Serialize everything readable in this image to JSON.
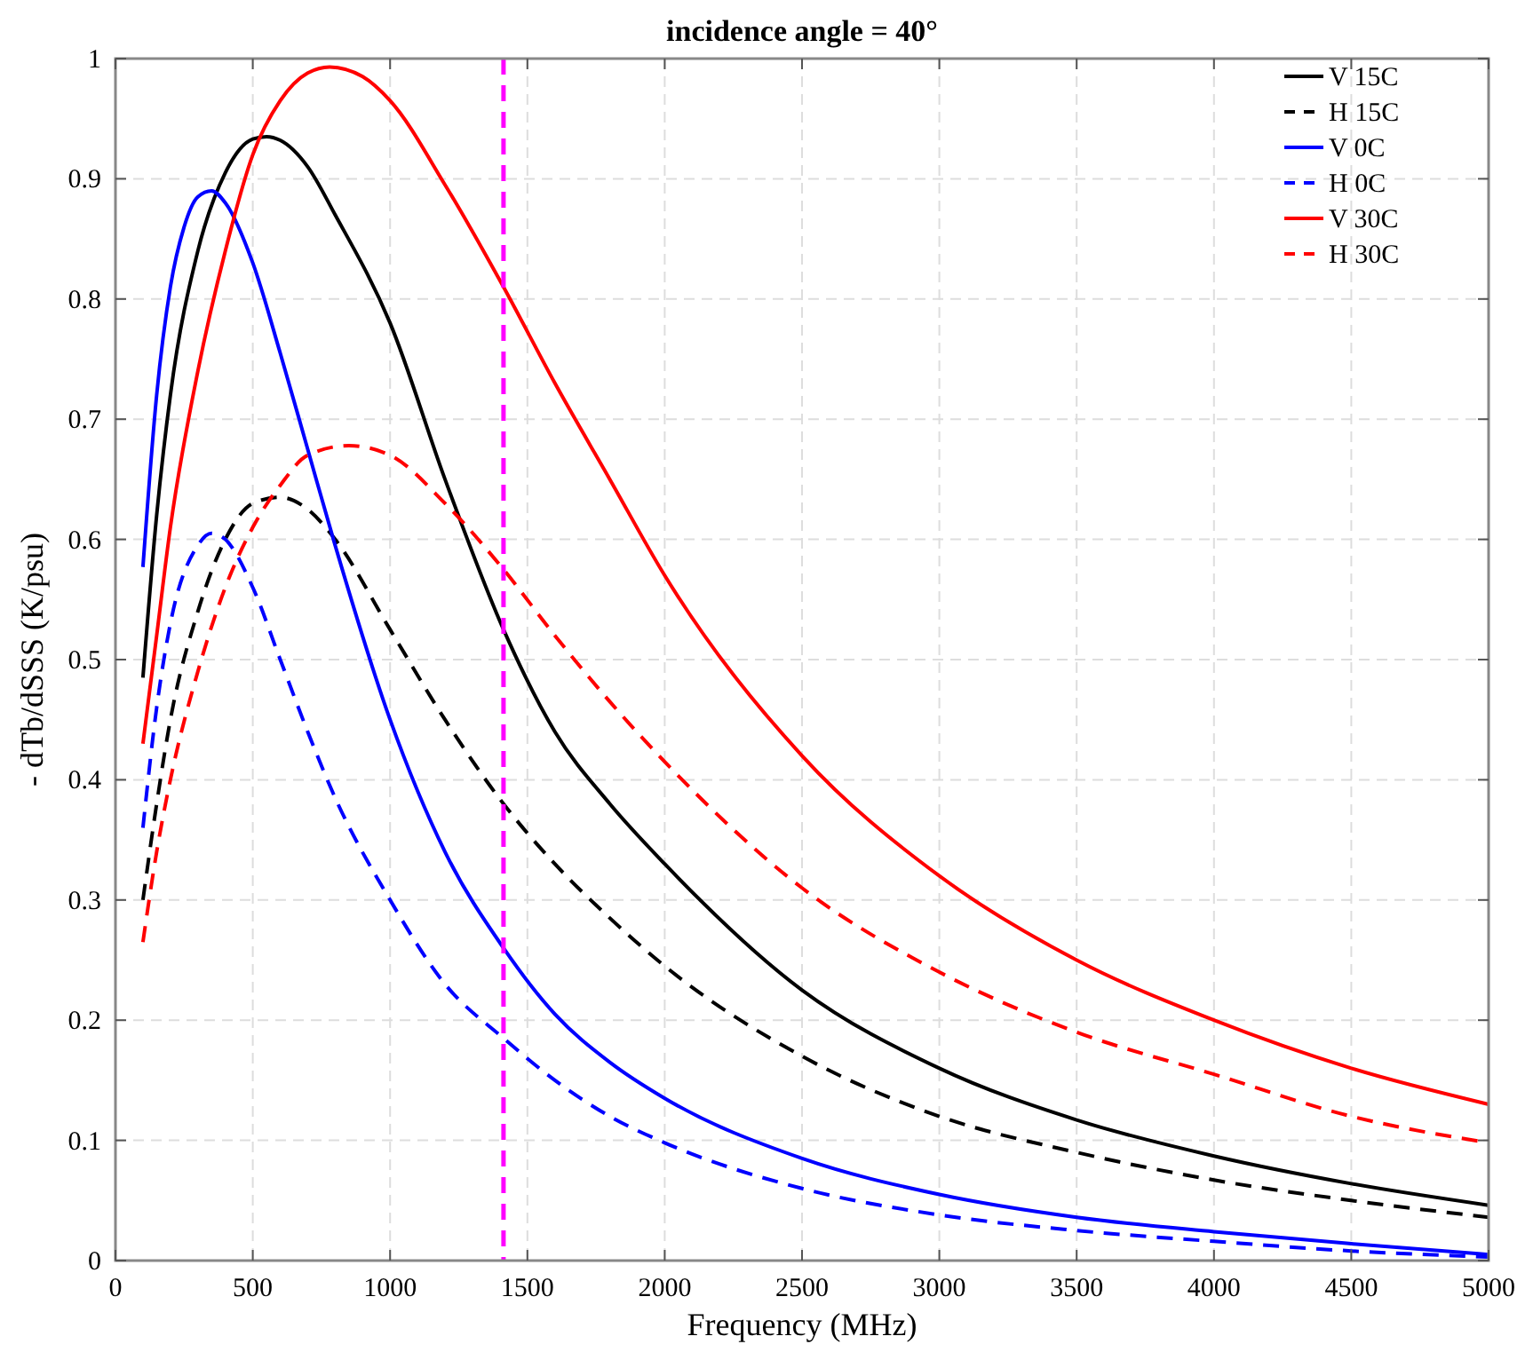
{
  "chart_data": {
    "type": "line",
    "title": "incidence angle = 40°",
    "xlabel": "Frequency (MHz)",
    "ylabel": "- dTb/dSSS (K/psu)",
    "xlim": [
      0,
      5000
    ],
    "xticks": [
      0,
      500,
      1000,
      1500,
      2000,
      2500,
      3000,
      3500,
      4000,
      4500,
      5000
    ],
    "ylim": [
      0,
      1
    ],
    "yticks": [
      0,
      0.1,
      0.2,
      0.3,
      0.4,
      0.5,
      0.6,
      0.7,
      0.8,
      0.9,
      1
    ],
    "grid": true,
    "legend": "top right",
    "ref_lines": [
      {
        "axis": "x",
        "value": 1413,
        "color": "#ff00ff",
        "line_style": "dashed"
      }
    ],
    "series": [
      {
        "name": "V 15C",
        "color": "#000000",
        "line_style": "solid",
        "x": [
          100,
          150,
          200,
          300,
          400,
          500,
          550,
          600,
          700,
          800,
          1000,
          1200,
          1413,
          1600,
          1800,
          2000,
          2500,
          3000,
          3500,
          4000,
          4500,
          5000
        ],
        "values": [
          0.485,
          0.62,
          0.72,
          0.84,
          0.905,
          0.933,
          0.935,
          0.932,
          0.91,
          0.87,
          0.78,
          0.65,
          0.525,
          0.44,
          0.38,
          0.33,
          0.225,
          0.16,
          0.117,
          0.087,
          0.064,
          0.046
        ]
      },
      {
        "name": "H 15C",
        "color": "#000000",
        "line_style": "dashed",
        "x": [
          100,
          150,
          200,
          300,
          400,
          500,
          600,
          700,
          800,
          1000,
          1200,
          1413,
          1600,
          1800,
          2000,
          2500,
          3000,
          3500,
          4000,
          4500,
          5000
        ],
        "values": [
          0.3,
          0.38,
          0.45,
          0.54,
          0.6,
          0.63,
          0.635,
          0.625,
          0.6,
          0.525,
          0.45,
          0.38,
          0.33,
          0.285,
          0.245,
          0.17,
          0.12,
          0.09,
          0.067,
          0.05,
          0.036
        ]
      },
      {
        "name": "V 0C",
        "color": "#0000ff",
        "line_style": "solid",
        "x": [
          100,
          150,
          200,
          250,
          300,
          350,
          400,
          500,
          600,
          700,
          800,
          1000,
          1200,
          1413,
          1600,
          1800,
          2000,
          2500,
          3000,
          3500,
          4000,
          4500,
          5000
        ],
        "values": [
          0.577,
          0.72,
          0.81,
          0.86,
          0.885,
          0.89,
          0.88,
          0.83,
          0.755,
          0.675,
          0.595,
          0.45,
          0.34,
          0.26,
          0.205,
          0.165,
          0.135,
          0.085,
          0.055,
          0.036,
          0.024,
          0.014,
          0.005
        ]
      },
      {
        "name": "H 0C",
        "color": "#0000ff",
        "line_style": "dashed",
        "x": [
          100,
          150,
          200,
          300,
          350,
          400,
          500,
          600,
          700,
          800,
          1000,
          1200,
          1413,
          1600,
          1800,
          2000,
          2500,
          3000,
          3500,
          4000,
          4500,
          5000
        ],
        "values": [
          0.36,
          0.46,
          0.53,
          0.595,
          0.605,
          0.6,
          0.56,
          0.5,
          0.44,
          0.385,
          0.3,
          0.23,
          0.185,
          0.15,
          0.12,
          0.098,
          0.06,
          0.038,
          0.025,
          0.016,
          0.008,
          0.003
        ]
      },
      {
        "name": "V 30C",
        "color": "#ff0000",
        "line_style": "solid",
        "x": [
          100,
          150,
          200,
          300,
          400,
          500,
          600,
          700,
          780,
          900,
          1000,
          1200,
          1413,
          1600,
          1800,
          2000,
          2500,
          3000,
          3500,
          4000,
          4500,
          5000
        ],
        "values": [
          0.43,
          0.52,
          0.61,
          0.74,
          0.84,
          0.92,
          0.965,
          0.988,
          0.993,
          0.985,
          0.965,
          0.895,
          0.81,
          0.73,
          0.65,
          0.57,
          0.42,
          0.32,
          0.25,
          0.2,
          0.16,
          0.13
        ]
      },
      {
        "name": "H 30C",
        "color": "#ff0000",
        "line_style": "dashed",
        "x": [
          100,
          150,
          200,
          300,
          400,
          500,
          600,
          700,
          850,
          1000,
          1200,
          1413,
          1600,
          1800,
          2000,
          2500,
          3000,
          3500,
          4000,
          4500,
          5000
        ],
        "values": [
          0.265,
          0.34,
          0.4,
          0.49,
          0.56,
          0.61,
          0.645,
          0.67,
          0.678,
          0.67,
          0.63,
          0.575,
          0.52,
          0.465,
          0.415,
          0.31,
          0.24,
          0.19,
          0.155,
          0.12,
          0.098
        ]
      }
    ]
  }
}
